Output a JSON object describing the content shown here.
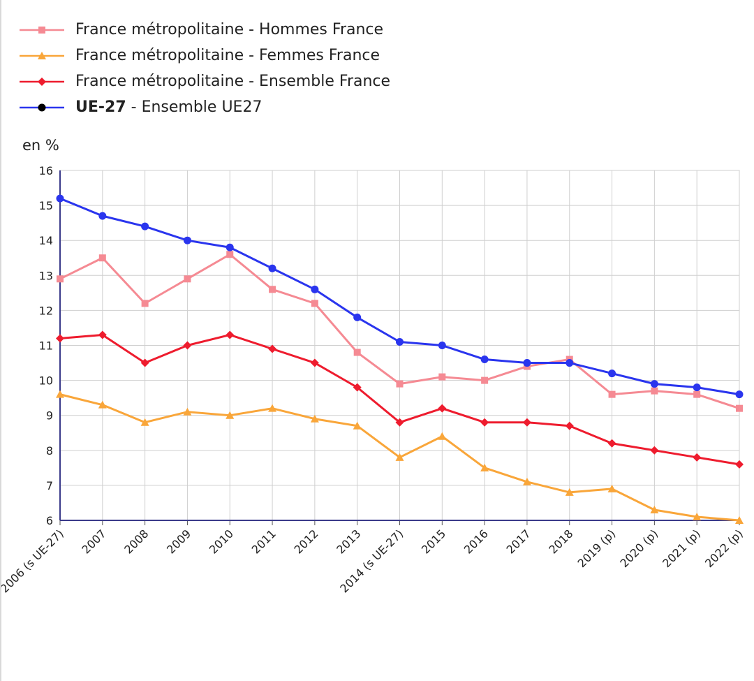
{
  "unit_label": "en %",
  "legend": [
    {
      "label": "France métropolitaine - Hommes France",
      "bold": "",
      "color": "#f58a93",
      "marker": "square"
    },
    {
      "label": "France métropolitaine - Femmes France",
      "bold": "",
      "color": "#f9a63a",
      "marker": "triangle"
    },
    {
      "label": "France métropolitaine - Ensemble France",
      "bold": "",
      "color": "#ee1c2e",
      "marker": "diamond"
    },
    {
      "label": " - Ensemble UE27",
      "bold": "UE-27",
      "color": "#2a35ee",
      "marker": "circle"
    }
  ],
  "chart_data": {
    "type": "line",
    "title": "",
    "xlabel": "",
    "ylabel": "en %",
    "ylim": [
      6,
      16
    ],
    "yticks": [
      6,
      7,
      8,
      9,
      10,
      11,
      12,
      13,
      14,
      15,
      16
    ],
    "grid": true,
    "legend_position": "top-left",
    "categories": [
      "2006 (s UE-27)",
      "2007",
      "2008",
      "2009",
      "2010",
      "2011",
      "2012",
      "2013",
      "2014 (s UE-27)",
      "2015",
      "2016",
      "2017",
      "2018",
      "2019 (p)",
      "2020 (p)",
      "2021 (p)",
      "2022 (p)"
    ],
    "series": [
      {
        "name": "France métropolitaine - Hommes France",
        "color": "#f58a93",
        "marker": "square",
        "values": [
          12.9,
          13.5,
          12.2,
          12.9,
          13.6,
          12.6,
          12.2,
          10.8,
          9.9,
          10.1,
          10.0,
          10.4,
          10.6,
          9.6,
          9.7,
          9.6,
          9.2
        ]
      },
      {
        "name": "France métropolitaine - Femmes France",
        "color": "#f9a63a",
        "marker": "triangle",
        "values": [
          9.6,
          9.3,
          8.8,
          9.1,
          9.0,
          9.2,
          8.9,
          8.7,
          7.8,
          8.4,
          7.5,
          7.1,
          6.8,
          6.9,
          6.3,
          6.1,
          6.0
        ]
      },
      {
        "name": "France métropolitaine - Ensemble France",
        "color": "#ee1c2e",
        "marker": "diamond",
        "values": [
          11.2,
          11.3,
          10.5,
          11.0,
          11.3,
          10.9,
          10.5,
          9.8,
          8.8,
          9.2,
          8.8,
          8.8,
          8.7,
          8.2,
          8.0,
          7.8,
          7.6
        ]
      },
      {
        "name": "UE-27 - Ensemble UE27",
        "color": "#2a35ee",
        "marker": "circle",
        "values": [
          15.2,
          14.7,
          14.4,
          14.0,
          13.8,
          13.2,
          12.6,
          11.8,
          11.1,
          11.0,
          10.6,
          10.5,
          10.5,
          10.2,
          9.9,
          9.8,
          9.6
        ]
      }
    ]
  }
}
